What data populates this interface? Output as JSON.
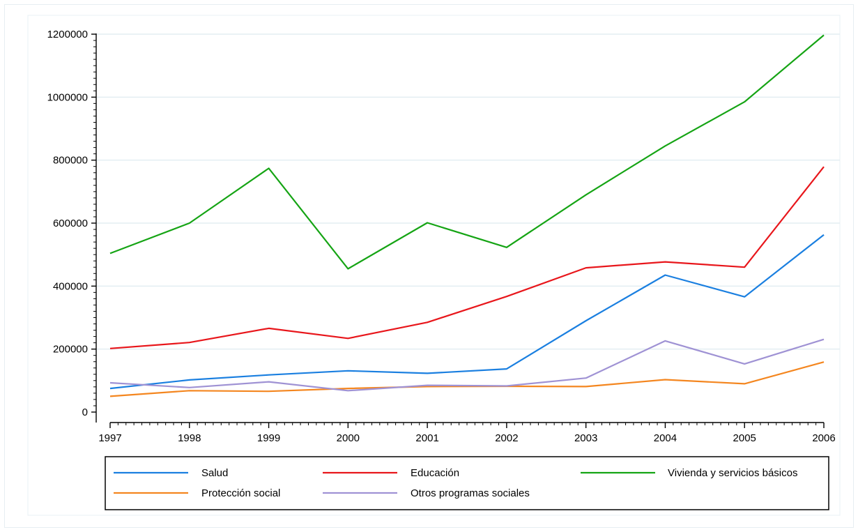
{
  "chart_data": {
    "type": "line",
    "title": "",
    "xlabel": "",
    "ylabel": "",
    "x": [
      1997,
      1998,
      1999,
      2000,
      2001,
      2002,
      2003,
      2004,
      2005,
      2006
    ],
    "x_tick_labels": [
      "1997",
      "1998",
      "1999",
      "2000",
      "2001",
      "2002",
      "2003",
      "2004",
      "2005",
      "2006"
    ],
    "y_ticks": [
      0,
      200000,
      400000,
      600000,
      800000,
      1000000,
      1200000
    ],
    "y_tick_labels": [
      "0",
      "200000",
      "400000",
      "600000",
      "800000",
      "1000000",
      "1200000"
    ],
    "ylim": [
      0,
      1200000
    ],
    "grid": "horizontal",
    "legend_position": "bottom",
    "series": [
      {
        "name": "Salud",
        "color": "#1a7fe0",
        "values": [
          75000,
          102000,
          118000,
          131000,
          123000,
          137000,
          290000,
          435000,
          366000,
          563000
        ]
      },
      {
        "name": "Educación",
        "color": "#e8161b",
        "values": [
          202000,
          221000,
          266000,
          234000,
          285000,
          367000,
          458000,
          477000,
          460000,
          779000
        ]
      },
      {
        "name": "Vivienda y servicios básicos",
        "color": "#15a414",
        "values": [
          504000,
          600000,
          774000,
          455000,
          601000,
          523000,
          690000,
          845000,
          985000,
          1197000
        ]
      },
      {
        "name": "Protección social",
        "color": "#f4861f",
        "values": [
          50000,
          68000,
          66000,
          75000,
          81000,
          82000,
          81000,
          103000,
          90000,
          159000
        ]
      },
      {
        "name": "Otros programas sociales",
        "color": "#9f92d4",
        "values": [
          93000,
          78000,
          96000,
          68000,
          85000,
          83000,
          108000,
          226000,
          153000,
          231000
        ]
      }
    ]
  }
}
